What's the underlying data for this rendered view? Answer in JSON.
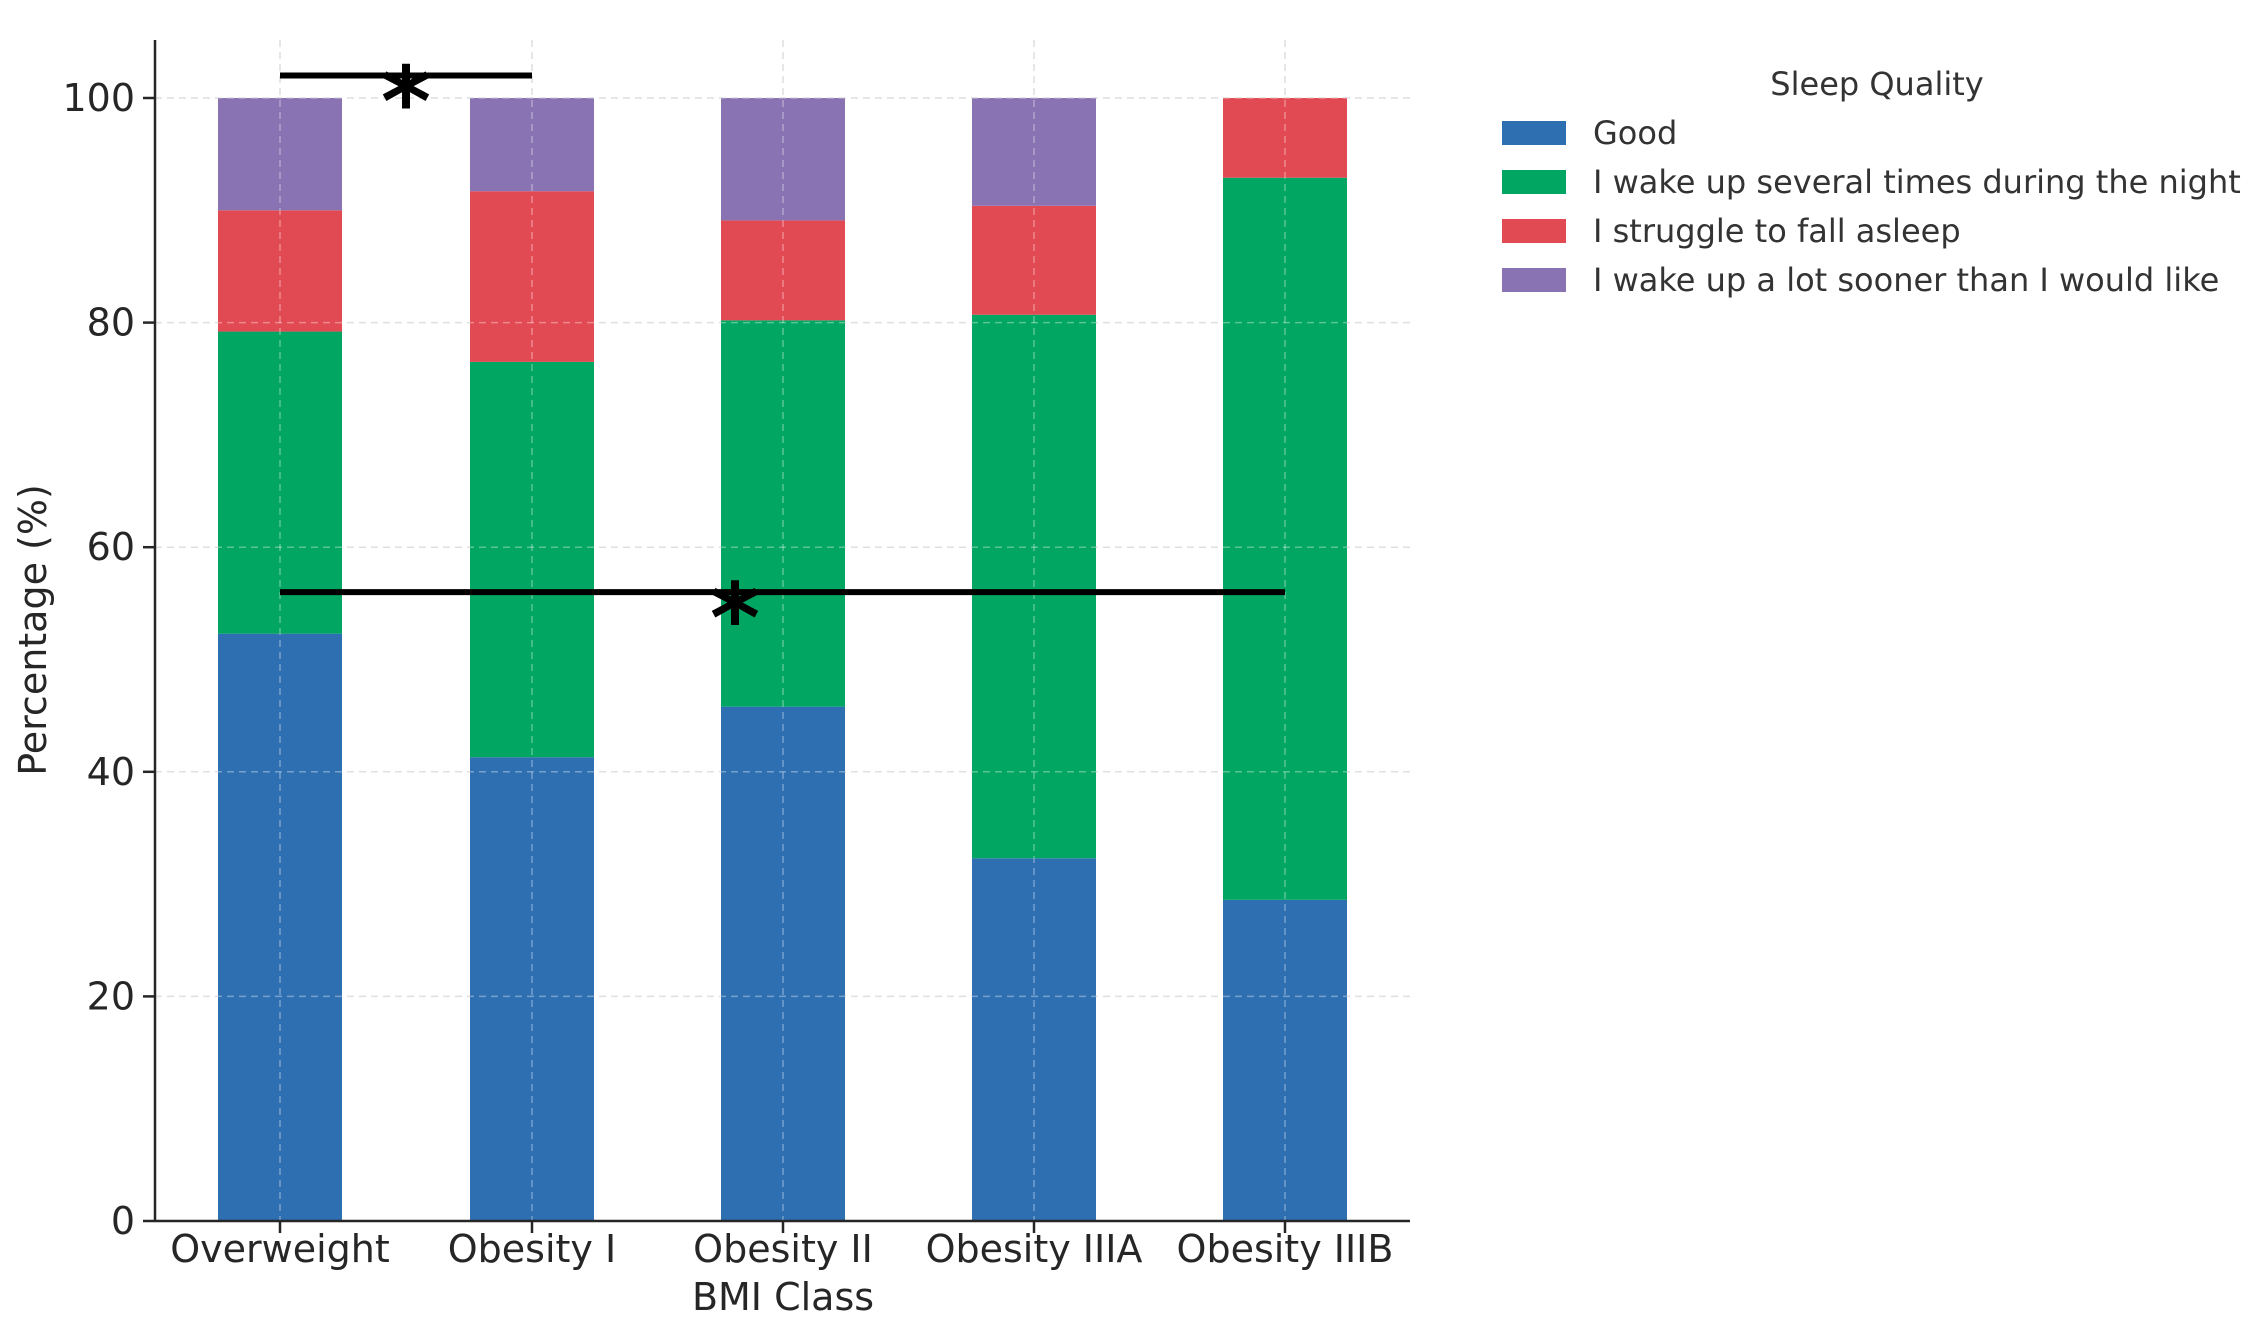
{
  "chart_data": {
    "type": "bar",
    "stacked": true,
    "categories": [
      "Overweight",
      "Obesity I",
      "Obesity II",
      "Obesity IIIA",
      "Obesity IIIB"
    ],
    "series": [
      {
        "name": "Good",
        "color": "#2e6fb2",
        "values": [
          52.3,
          41.3,
          45.8,
          32.3,
          28.6
        ]
      },
      {
        "name": "I wake up several times during the night",
        "color": "#00a661",
        "values": [
          26.9,
          35.2,
          34.4,
          48.4,
          64.3
        ]
      },
      {
        "name": "I struggle to fall asleep",
        "color": "#e24a53",
        "values": [
          10.8,
          15.2,
          8.9,
          9.7,
          7.1
        ]
      },
      {
        "name": "I wake up a lot sooner than I would like",
        "color": "#8973b3",
        "values": [
          10.0,
          8.3,
          10.9,
          9.6,
          0.0
        ]
      }
    ],
    "xlabel": "BMI Class",
    "ylabel": "Percentage (%)",
    "ylim": [
      0,
      105
    ],
    "yticks": [
      0,
      20,
      40,
      60,
      80,
      100
    ],
    "grid": true,
    "legend": {
      "title": "Sleep Quality",
      "placement": "outside-top-right"
    },
    "annotations": [
      {
        "label": "*",
        "from": "Overweight",
        "to": "Obesity I",
        "y": 102
      },
      {
        "label": "*",
        "from": "Overweight",
        "to": "Obesity IIIB",
        "y": 56
      }
    ]
  }
}
